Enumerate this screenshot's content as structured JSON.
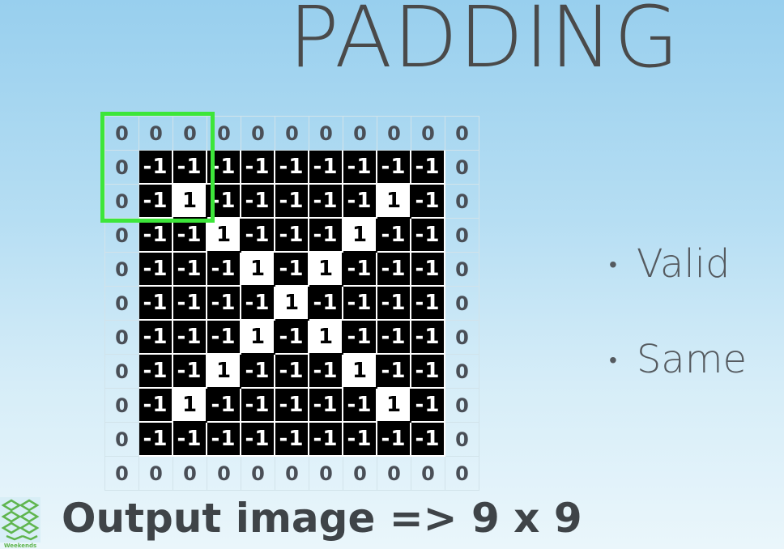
{
  "slide": {
    "title": "PADDING",
    "bullets": [
      "Valid",
      "Same"
    ],
    "bullet_symbol": "•",
    "caption": "Output image => 9 x 9",
    "logo_text": "Weekends"
  },
  "grid": {
    "rows": [
      [
        "0",
        "0",
        "0",
        "0",
        "0",
        "0",
        "0",
        "0",
        "0",
        "0",
        "0"
      ],
      [
        "0",
        "-1",
        "-1",
        "-1",
        "-1",
        "-1",
        "-1",
        "-1",
        "-1",
        "-1",
        "0"
      ],
      [
        "0",
        "-1",
        "1",
        "-1",
        "-1",
        "-1",
        "-1",
        "-1",
        "1",
        "-1",
        "0"
      ],
      [
        "0",
        "-1",
        "-1",
        "1",
        "-1",
        "-1",
        "-1",
        "1",
        "-1",
        "-1",
        "0"
      ],
      [
        "0",
        "-1",
        "-1",
        "-1",
        "1",
        "-1",
        "1",
        "-1",
        "-1",
        "-1",
        "0"
      ],
      [
        "0",
        "-1",
        "-1",
        "-1",
        "-1",
        "1",
        "-1",
        "-1",
        "-1",
        "-1",
        "0"
      ],
      [
        "0",
        "-1",
        "-1",
        "-1",
        "1",
        "-1",
        "1",
        "-1",
        "-1",
        "-1",
        "0"
      ],
      [
        "0",
        "-1",
        "-1",
        "1",
        "-1",
        "-1",
        "-1",
        "1",
        "-1",
        "-1",
        "0"
      ],
      [
        "0",
        "-1",
        "1",
        "-1",
        "-1",
        "-1",
        "-1",
        "-1",
        "1",
        "-1",
        "0"
      ],
      [
        "0",
        "-1",
        "-1",
        "-1",
        "-1",
        "-1",
        "-1",
        "-1",
        "-1",
        "-1",
        "0"
      ],
      [
        "0",
        "0",
        "0",
        "0",
        "0",
        "0",
        "0",
        "0",
        "0",
        "0",
        "0"
      ]
    ]
  },
  "colors": {
    "highlight": "#3de63a",
    "negative_bg": "#000000",
    "positive_bg": "#ffffff"
  }
}
